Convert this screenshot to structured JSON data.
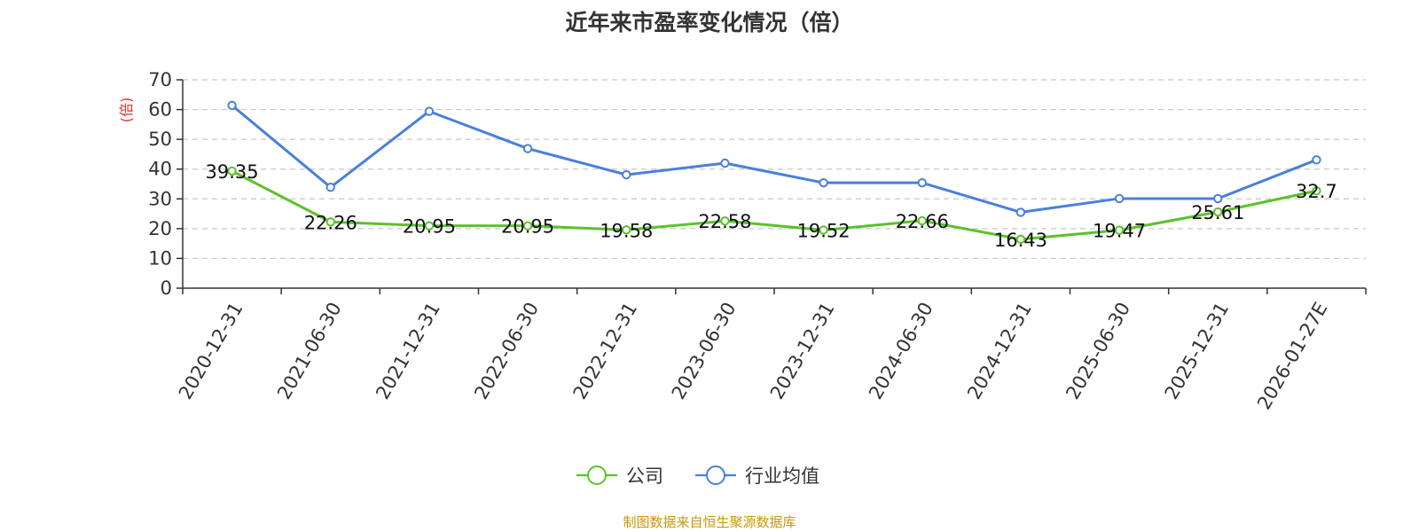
{
  "chart_data": {
    "type": "line",
    "title": "近年来市盈率变化情况（倍）",
    "ylabel": "(倍)",
    "ylabel_color": "#e0302b",
    "ylim": [
      0,
      70
    ],
    "yticks": [
      0,
      10,
      20,
      30,
      40,
      50,
      60,
      70
    ],
    "categories": [
      "2020-12-31",
      "2021-06-30",
      "2021-12-31",
      "2022-06-30",
      "2022-12-31",
      "2023-06-30",
      "2023-12-31",
      "2024-06-30",
      "2024-12-31",
      "2025-06-30",
      "2025-12-31",
      "2026-01-27E"
    ],
    "grid": true,
    "legend_position": "bottom",
    "series": [
      {
        "name": "公司",
        "color": "#5cc12c",
        "values": [
          39.35,
          22.26,
          20.95,
          20.95,
          19.58,
          22.58,
          19.52,
          22.66,
          16.43,
          19.47,
          25.61,
          32.7
        ],
        "data_labels": [
          "39.35",
          "22.26",
          "20.95",
          "20.95",
          "19.58",
          "22.58",
          "19.52",
          "22.66",
          "16.43",
          "19.47",
          "25.61",
          "32.7"
        ]
      },
      {
        "name": "行业均值",
        "color": "#4a7fdc",
        "values": [
          61.4,
          33.9,
          59.4,
          46.9,
          38.1,
          42.0,
          35.4,
          35.4,
          25.5,
          30.1,
          30.1,
          43.1
        ]
      }
    ],
    "source": "制图数据来自恒生聚源数据库",
    "source_color": "#c8960c"
  }
}
